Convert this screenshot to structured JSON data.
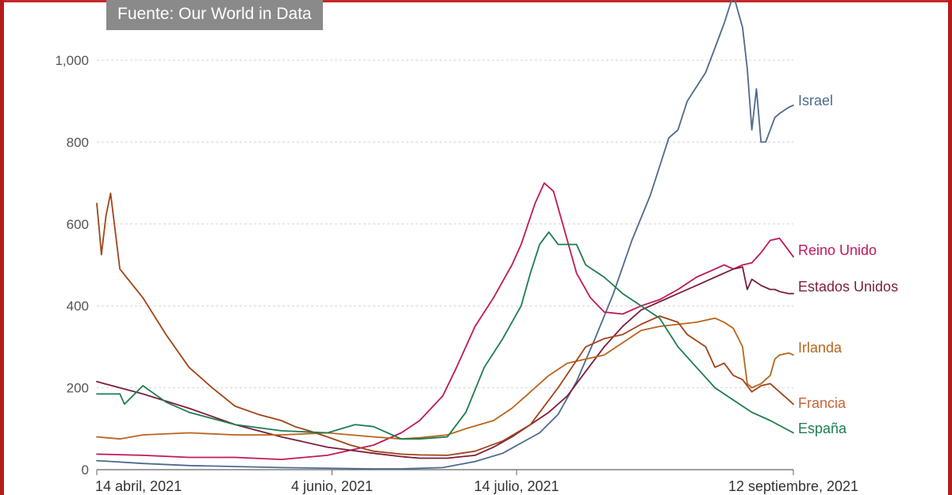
{
  "source_label": "Fuente: Our World in Data",
  "chart_data": {
    "type": "line",
    "title": "",
    "xlabel": "",
    "ylabel": "",
    "x_unit": "days since 14 abril, 2021",
    "xlim": [
      0,
      151
    ],
    "ylim": [
      0,
      1000
    ],
    "y_ticks": [
      {
        "value": 0,
        "label": "0"
      },
      {
        "value": 200,
        "label": "200"
      },
      {
        "value": 400,
        "label": "400"
      },
      {
        "value": 600,
        "label": "600"
      },
      {
        "value": 800,
        "label": "800"
      },
      {
        "value": 1000,
        "label": "1,000"
      }
    ],
    "x_ticks": [
      {
        "value": 0,
        "label": "14 abril, 2021"
      },
      {
        "value": 51,
        "label": "4 junio, 2021"
      },
      {
        "value": 91,
        "label": "14 julio, 2021"
      },
      {
        "value": 151,
        "label": "12 septiembre, 2021"
      }
    ],
    "grid": true,
    "series": [
      {
        "name": "Israel",
        "color": "#4e6a8e",
        "x": [
          0,
          10,
          20,
          40,
          60,
          66,
          75,
          82,
          88,
          92,
          96,
          100,
          104,
          108,
          112,
          116,
          120,
          122,
          124,
          126,
          128,
          130,
          132,
          134,
          136,
          138,
          140,
          141,
          142,
          143,
          144,
          145,
          147,
          148,
          150,
          151
        ],
        "values": [
          22,
          15,
          10,
          5,
          2,
          2,
          5,
          20,
          40,
          65,
          90,
          135,
          215,
          320,
          430,
          560,
          670,
          740,
          810,
          830,
          900,
          935,
          970,
          1030,
          1090,
          1160,
          1080,
          980,
          830,
          930,
          800,
          800,
          860,
          870,
          885,
          890
        ]
      },
      {
        "name": "Reino Unido",
        "color": "#c2185b",
        "x": [
          0,
          10,
          20,
          30,
          40,
          50,
          60,
          66,
          70,
          75,
          78,
          82,
          86,
          88,
          90,
          92,
          95,
          97,
          99,
          101,
          104,
          107,
          110,
          114,
          118,
          122,
          126,
          130,
          134,
          136,
          138,
          140,
          142,
          144,
          146,
          148,
          151
        ],
        "values": [
          38,
          35,
          30,
          30,
          25,
          35,
          60,
          90,
          120,
          180,
          250,
          350,
          420,
          460,
          500,
          550,
          650,
          700,
          680,
          600,
          480,
          420,
          385,
          380,
          400,
          415,
          440,
          470,
          490,
          500,
          490,
          500,
          505,
          530,
          560,
          565,
          520
        ]
      },
      {
        "name": "Estados Unidos",
        "color": "#7b1f3a",
        "x": [
          0,
          10,
          20,
          30,
          40,
          50,
          60,
          66,
          70,
          76,
          82,
          86,
          90,
          94,
          98,
          102,
          106,
          110,
          114,
          118,
          122,
          126,
          130,
          134,
          138,
          140,
          141,
          142,
          144,
          146,
          147,
          148,
          150,
          151
        ],
        "values": [
          215,
          185,
          150,
          110,
          80,
          55,
          40,
          32,
          28,
          28,
          35,
          55,
          80,
          110,
          140,
          180,
          240,
          300,
          350,
          390,
          410,
          430,
          450,
          470,
          490,
          495,
          440,
          465,
          450,
          440,
          440,
          435,
          430,
          430
        ]
      },
      {
        "name": "Irlanda",
        "color": "#b8651f",
        "x": [
          0,
          5,
          10,
          20,
          30,
          40,
          50,
          60,
          66,
          70,
          76,
          80,
          86,
          90,
          94,
          98,
          102,
          106,
          110,
          114,
          118,
          122,
          126,
          130,
          134,
          136,
          138,
          140,
          141,
          142,
          144,
          146,
          147,
          148,
          150,
          151
        ],
        "values": [
          80,
          75,
          85,
          90,
          85,
          85,
          90,
          80,
          75,
          78,
          85,
          100,
          120,
          150,
          190,
          230,
          260,
          270,
          280,
          310,
          340,
          350,
          355,
          360,
          370,
          360,
          345,
          300,
          210,
          200,
          210,
          230,
          270,
          280,
          285,
          280
        ]
      },
      {
        "name": "Francia",
        "color": "#a14419",
        "x": [
          0,
          0.5,
          1,
          2,
          3,
          5,
          10,
          15,
          20,
          25,
          30,
          35,
          40,
          43,
          46,
          50,
          55,
          60,
          66,
          70,
          76,
          82,
          88,
          94,
          100,
          106,
          110,
          114,
          118,
          122,
          126,
          128,
          132,
          134,
          136,
          138,
          140,
          142,
          144,
          146,
          148,
          150,
          151
        ],
        "values": [
          650,
          590,
          525,
          620,
          675,
          490,
          420,
          330,
          250,
          200,
          155,
          135,
          120,
          105,
          95,
          80,
          60,
          45,
          38,
          36,
          35,
          45,
          70,
          110,
          200,
          300,
          320,
          330,
          355,
          375,
          360,
          330,
          300,
          250,
          260,
          230,
          220,
          190,
          205,
          210,
          190,
          170,
          160
        ]
      },
      {
        "name": "España",
        "color": "#1e7d4f",
        "x": [
          0,
          5,
          6,
          10,
          15,
          20,
          30,
          40,
          50,
          56,
          60,
          66,
          70,
          76,
          80,
          84,
          88,
          92,
          94,
          96,
          98,
          100,
          104,
          106,
          110,
          114,
          118,
          122,
          126,
          130,
          134,
          138,
          142,
          146,
          151
        ],
        "values": [
          185,
          185,
          160,
          205,
          165,
          140,
          110,
          95,
          90,
          110,
          105,
          75,
          75,
          80,
          140,
          250,
          320,
          400,
          480,
          550,
          580,
          550,
          550,
          500,
          470,
          430,
          400,
          370,
          300,
          250,
          200,
          170,
          140,
          120,
          90
        ]
      }
    ],
    "annotations": [
      {
        "series": "Israel",
        "label": "Israel",
        "color": "#4e6a8e"
      },
      {
        "series": "Reino Unido",
        "label": "Reino Unido",
        "color": "#c2185b"
      },
      {
        "series": "Estados Unidos",
        "label": "Estados Unidos",
        "color": "#7b1f3a"
      },
      {
        "series": "Irlanda",
        "label": "Irlanda",
        "color": "#b8651f"
      },
      {
        "series": "Francia",
        "label": "Francia",
        "color": "#c8643a"
      },
      {
        "series": "España",
        "label": "España",
        "color": "#1e7d4f"
      }
    ]
  }
}
